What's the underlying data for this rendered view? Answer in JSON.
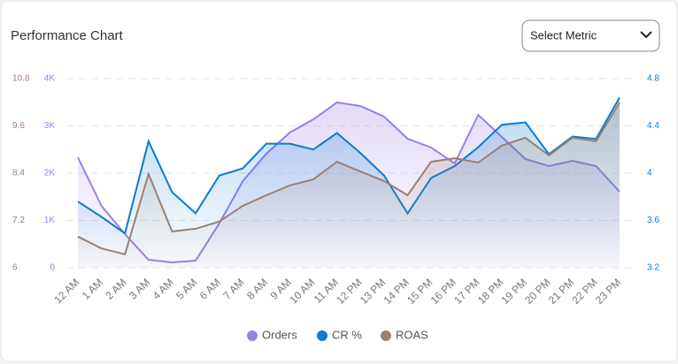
{
  "chart_data": {
    "type": "line",
    "title": "Performance Chart",
    "metric_select": "Select Metric",
    "categories": [
      "12 AM",
      "1 AM",
      "2 AM",
      "3 AM",
      "4 AM",
      "5 AM",
      "6 AM",
      "7 AM",
      "8 AM",
      "9 AM",
      "10 AM",
      "11 AM",
      "12 PM",
      "13 PM",
      "14 PM",
      "15 PM",
      "16 PM",
      "17 PM",
      "18 PM",
      "19 PM",
      "20 PM",
      "21 PM",
      "22 PM",
      "23 PM"
    ],
    "series": [
      {
        "name": "Orders",
        "color": "#9b7fe6",
        "axis": "y",
        "values": [
          2336,
          1308,
          710,
          168,
          112,
          150,
          935,
          1832,
          2411,
          2860,
          3140,
          3495,
          3421,
          3196,
          2729,
          2542,
          2206,
          3234,
          2766,
          2299,
          2150,
          2262,
          2150,
          1607
        ]
      },
      {
        "name": "CR %",
        "color": "#0b7bd0",
        "axis": "y2",
        "values": [
          3.76,
          3.63,
          3.49,
          4.27,
          3.84,
          3.66,
          3.98,
          4.04,
          4.25,
          4.25,
          4.2,
          4.34,
          4.17,
          3.98,
          3.66,
          3.96,
          4.06,
          4.22,
          4.41,
          4.43,
          4.16,
          4.31,
          4.29,
          4.64
        ]
      },
      {
        "name": "ROAS",
        "color": "#9e8070",
        "axis": "y3",
        "values": [
          6.79,
          6.49,
          6.34,
          8.38,
          6.92,
          6.99,
          7.17,
          7.57,
          7.84,
          8.09,
          8.24,
          8.69,
          8.44,
          8.2,
          7.84,
          8.69,
          8.78,
          8.67,
          9.1,
          9.3,
          8.85,
          9.3,
          9.21,
          10.19
        ]
      }
    ],
    "ylim": [
      0,
      4000
    ],
    "yticks": [
      {
        "value": 0,
        "label": "0"
      },
      {
        "value": 1000,
        "label": "1K"
      },
      {
        "value": 2000,
        "label": "2K"
      },
      {
        "value": 3000,
        "label": "3K"
      },
      {
        "value": 4000,
        "label": "4K"
      }
    ],
    "y2lim": [
      3.2,
      4.8
    ],
    "y2ticks": [
      3.2,
      3.6,
      4,
      4.4,
      4.8
    ],
    "y3lim": [
      6,
      10.8
    ],
    "y3ticks": [
      6,
      7.2,
      8.4,
      9.6,
      10.8
    ],
    "grid": true,
    "legend": "bottom"
  }
}
